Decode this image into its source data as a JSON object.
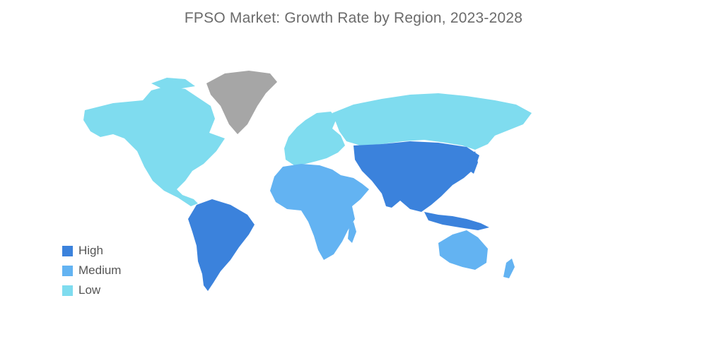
{
  "title": "FPSO Market: Growth Rate by Region, 2023-2028",
  "colors": {
    "high": "#3b82dc",
    "medium": "#63b3f2",
    "low": "#7fdcef",
    "no_data": "#a6a6a6"
  },
  "legend": [
    {
      "label": "High",
      "color_key": "high"
    },
    {
      "label": "Medium",
      "color_key": "medium"
    },
    {
      "label": "Low",
      "color_key": "low"
    }
  ],
  "regions": [
    {
      "name": "North America",
      "level": "low"
    },
    {
      "name": "Europe",
      "level": "low"
    },
    {
      "name": "Russia",
      "level": "low"
    },
    {
      "name": "South America",
      "level": "high"
    },
    {
      "name": "Asia-Pacific",
      "level": "high"
    },
    {
      "name": "Middle East and Africa",
      "level": "medium"
    },
    {
      "name": "Australia and New Zealand",
      "level": "medium"
    },
    {
      "name": "Greenland",
      "level": "no_data"
    }
  ]
}
